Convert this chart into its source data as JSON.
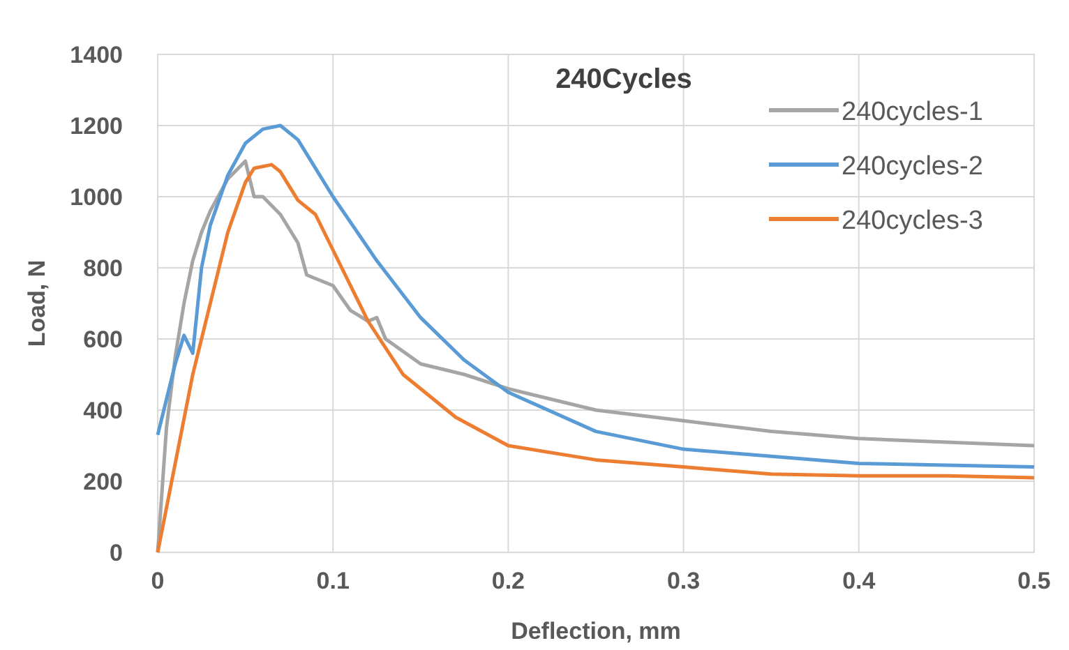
{
  "chart_data": {
    "type": "line",
    "title": "240Cycles",
    "xlabel": "Deflection, mm",
    "ylabel": "Load, N",
    "xlim": [
      0,
      0.5
    ],
    "xticks": [
      {
        "value": 0,
        "label": "0"
      },
      {
        "value": 0.1,
        "label": "0.1"
      },
      {
        "value": 0.2,
        "label": "0.2"
      },
      {
        "value": 0.3,
        "label": "0.3"
      },
      {
        "value": 0.4,
        "label": "0.4"
      },
      {
        "value": 0.5,
        "label": "0.5"
      }
    ],
    "ylim": [
      0,
      1400
    ],
    "yticks": [
      0,
      200,
      400,
      600,
      800,
      1000,
      1200,
      1400
    ],
    "grid": true,
    "legend": "top right",
    "marker": "none",
    "line_style": "solid",
    "series": [
      {
        "name": "240cycles-1",
        "color": "#a5a5a5",
        "x": [
          0,
          0.005,
          0.01,
          0.015,
          0.02,
          0.025,
          0.03,
          0.04,
          0.05,
          0.055,
          0.06,
          0.07,
          0.08,
          0.085,
          0.1,
          0.11,
          0.12,
          0.125,
          0.13,
          0.15,
          0.175,
          0.2,
          0.25,
          0.3,
          0.35,
          0.4,
          0.45,
          0.5
        ],
        "values": [
          0,
          350,
          550,
          700,
          820,
          900,
          960,
          1050,
          1100,
          1000,
          1000,
          950,
          870,
          780,
          750,
          680,
          650,
          660,
          600,
          530,
          500,
          460,
          400,
          370,
          340,
          320,
          310,
          300
        ]
      },
      {
        "name": "240cycles-2",
        "color": "#5b9bd5",
        "x": [
          0,
          0.005,
          0.01,
          0.015,
          0.02,
          0.025,
          0.03,
          0.04,
          0.05,
          0.06,
          0.07,
          0.08,
          0.1,
          0.125,
          0.15,
          0.175,
          0.2,
          0.25,
          0.3,
          0.35,
          0.4,
          0.45,
          0.5
        ],
        "values": [
          330,
          430,
          530,
          610,
          560,
          800,
          920,
          1060,
          1150,
          1190,
          1200,
          1160,
          1000,
          820,
          660,
          540,
          450,
          340,
          290,
          270,
          250,
          245,
          240
        ]
      },
      {
        "name": "240cycles-3",
        "color": "#ed7d31",
        "x": [
          0,
          0.01,
          0.02,
          0.03,
          0.04,
          0.05,
          0.055,
          0.065,
          0.07,
          0.08,
          0.09,
          0.1,
          0.11,
          0.12,
          0.14,
          0.17,
          0.2,
          0.25,
          0.3,
          0.35,
          0.4,
          0.45,
          0.5
        ],
        "values": [
          0,
          250,
          500,
          700,
          900,
          1040,
          1080,
          1090,
          1070,
          990,
          950,
          850,
          750,
          650,
          500,
          380,
          300,
          260,
          240,
          220,
          215,
          215,
          210
        ]
      }
    ]
  }
}
